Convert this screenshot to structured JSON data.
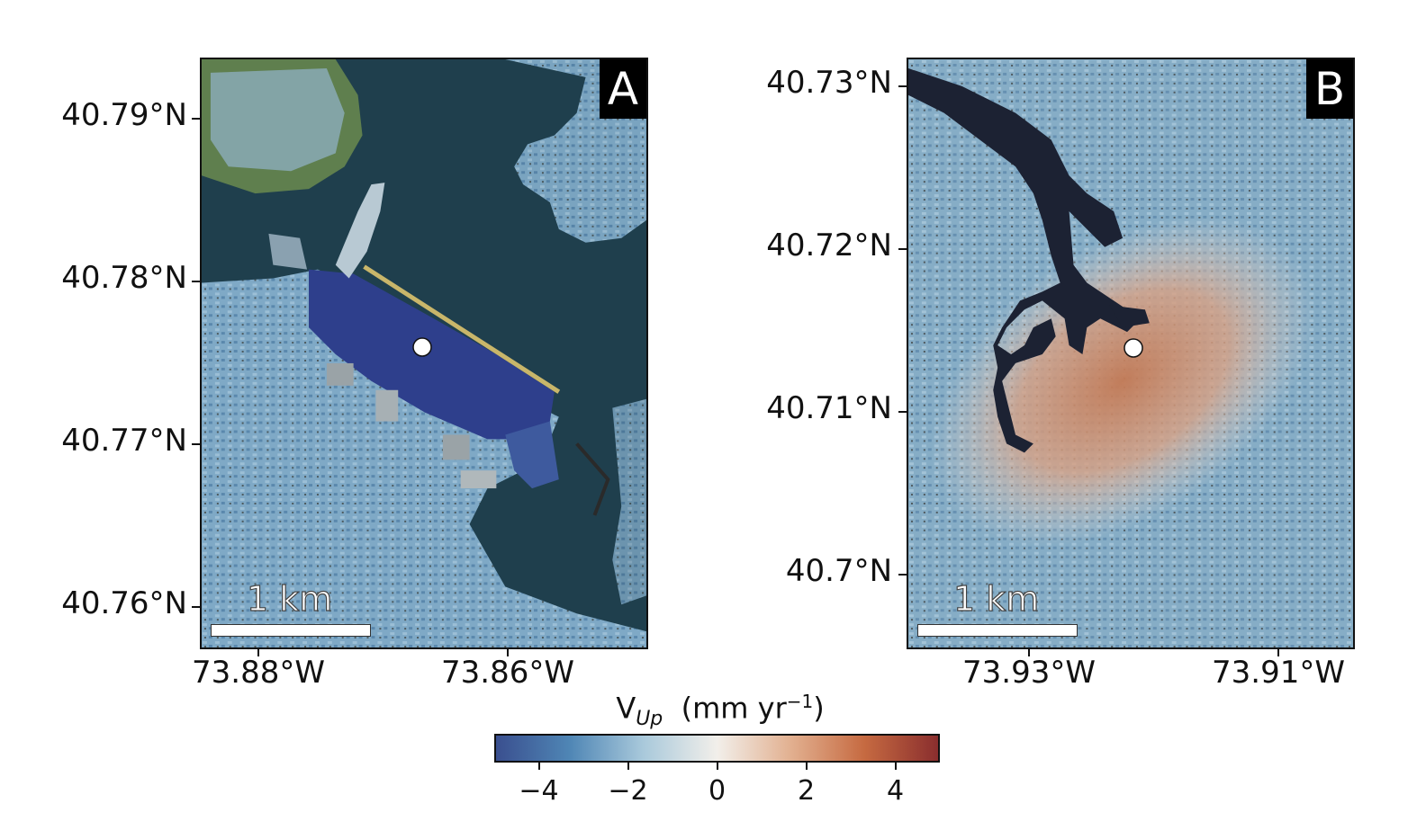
{
  "panels": [
    {
      "letter": "A",
      "scale_label": "1 km",
      "y_ticks": [
        "40.79°N",
        "40.78°N",
        "40.77°N",
        "40.76°N"
      ],
      "x_ticks": [
        "73.88°W",
        "73.86°W"
      ]
    },
    {
      "letter": "B",
      "scale_label": "1 km",
      "y_ticks": [
        "40.73°N",
        "40.72°N",
        "40.71°N",
        "40.7°N"
      ],
      "x_ticks": [
        "73.93°W",
        "73.91°W"
      ]
    }
  ],
  "colorbar": {
    "label_main": "V",
    "label_sub": "Up",
    "label_unit": "(mm yr",
    "label_sup": "−1",
    "label_close": ")",
    "range": [
      -5,
      5
    ],
    "ticks": [
      "−4",
      "−2",
      "0",
      "2",
      "4"
    ],
    "colors": [
      "#3a4f8f",
      "#4f86b5",
      "#a9c9db",
      "#f2efea",
      "#e2b090",
      "#c66a41",
      "#8a2e2e"
    ]
  },
  "colors": {
    "water": "#1f3f4d",
    "subsidence_land": "#6e9fc0",
    "strong_subsidence": "#2e3f8c",
    "uplift": "#c98662",
    "marker": "#ffffff"
  }
}
